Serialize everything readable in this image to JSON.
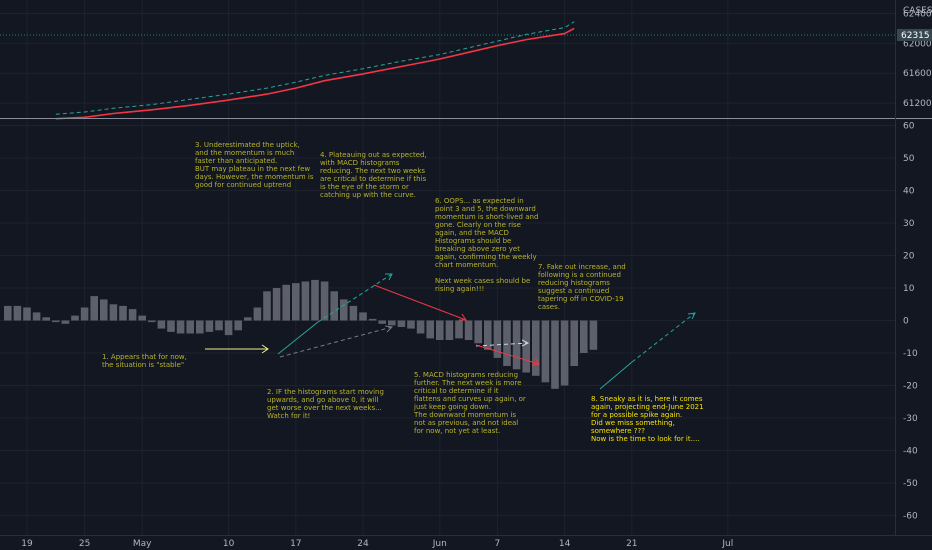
{
  "chart_data": [
    {
      "type": "line",
      "panel": "price",
      "title": "",
      "symbol_label": "CASES",
      "last_value_label": "62315",
      "last_value": 62315,
      "price_ticks": [
        {
          "value": 62400,
          "label": "62400"
        },
        {
          "value": 62000,
          "label": "62000"
        },
        {
          "value": 61600,
          "label": "61600"
        },
        {
          "value": 61200,
          "label": "61200"
        }
      ],
      "ylim": [
        61000,
        62580
      ],
      "colors": {
        "line": "#f23645",
        "dashed_series": "#26a69a",
        "last_value_badge": "#37474f"
      },
      "x": [
        "2021-04-22",
        "2021-04-25",
        "2021-04-28",
        "2021-05-02",
        "2021-05-06",
        "2021-05-10",
        "2021-05-14",
        "2021-05-17",
        "2021-05-20",
        "2021-05-24",
        "2021-05-28",
        "2021-06-01",
        "2021-06-04",
        "2021-06-07",
        "2021-06-10",
        "2021-06-14",
        "2021-06-15"
      ],
      "series": [
        {
          "style": "solid",
          "values": [
            60990,
            61010,
            61060,
            61110,
            61170,
            61240,
            61320,
            61400,
            61500,
            61590,
            61690,
            61790,
            61880,
            61970,
            62050,
            62130,
            62200
          ]
        },
        {
          "style": "dashed",
          "values": [
            61050,
            61080,
            61130,
            61180,
            61250,
            61320,
            61400,
            61480,
            61570,
            61660,
            61760,
            61850,
            61940,
            62030,
            62120,
            62210,
            62290
          ]
        }
      ]
    },
    {
      "type": "bar",
      "panel": "histogram",
      "title": "",
      "ylim": [
        -66,
        62
      ],
      "y_ticks": [
        60,
        50,
        40,
        30,
        20,
        10,
        0,
        -10,
        -20,
        -30,
        -40,
        -50,
        -60
      ],
      "x_ticks": [
        {
          "date": "2021-04-19",
          "label": "19"
        },
        {
          "date": "2021-04-25",
          "label": "25"
        },
        {
          "date": "2021-05-01",
          "label": "May"
        },
        {
          "date": "2021-05-10",
          "label": "10"
        },
        {
          "date": "2021-05-17",
          "label": "17"
        },
        {
          "date": "2021-05-24",
          "label": "24"
        },
        {
          "date": "2021-06-01",
          "label": "Jun"
        },
        {
          "date": "2021-06-07",
          "label": "7"
        },
        {
          "date": "2021-06-14",
          "label": "14"
        },
        {
          "date": "2021-06-21",
          "label": "21"
        },
        {
          "date": "2021-07-01",
          "label": "Jul"
        }
      ],
      "colors": {
        "bar": "#5d606b",
        "grid": "#1e222d"
      },
      "start_date": "2021-04-17",
      "values": [
        4.5,
        4.5,
        4,
        2.5,
        1,
        -0.5,
        -1,
        1.5,
        4,
        7.5,
        6.5,
        5,
        4.5,
        3.5,
        1.5,
        -0.5,
        -2.5,
        -3.5,
        -4,
        -4,
        -4,
        -3.5,
        -3,
        -4.5,
        -3,
        1,
        4,
        9,
        10,
        11,
        11.5,
        12,
        12.5,
        12,
        9,
        6.5,
        4.5,
        2.5,
        0.5,
        -1,
        -1.5,
        -2,
        -2.5,
        -4,
        -5.5,
        -6,
        -6,
        -5.5,
        -6,
        -7,
        -9,
        -11.5,
        -14,
        -15,
        -16,
        -17,
        -19,
        -21,
        -20,
        -14,
        -10,
        -9
      ]
    }
  ],
  "annotations": [
    {
      "id": "note-1",
      "color": "#b7b32b",
      "lines": [
        "1. Appears that for now,",
        "the situation is \"stable\""
      ]
    },
    {
      "id": "note-2",
      "color": "#b7b32b",
      "lines": [
        "2. IF the histograms start moving",
        "upwards, and go above 0, it will",
        "get worse over the next weeks...",
        "Watch for it!"
      ]
    },
    {
      "id": "note-3",
      "color": "#b7b32b",
      "lines": [
        "3. Underestimated the uptick,",
        "and the momentum is much",
        "faster than anticipated.",
        "BUT may plateau in the next few",
        "days. However, the momentum is",
        "good for continued uptrend"
      ]
    },
    {
      "id": "note-4",
      "color": "#b7b32b",
      "lines": [
        "4. Plateauing out as expected,",
        "with MACD histograms",
        "reducing. The next two weeks",
        "are critical to determine if this",
        "is the eye of the storm or",
        "catching up with the curve."
      ]
    },
    {
      "id": "note-5",
      "color": "#b7b32b",
      "lines": [
        "5. MACD histograms reducing",
        "further. The next week is more",
        "critical to determine if it",
        "flattens and curves up again, or",
        "just keep going down.",
        "The downward momentum is",
        "not as previous, and not ideal",
        "for now, not yet at least."
      ]
    },
    {
      "id": "note-6",
      "color": "#b7b32b",
      "lines": [
        "6. OOPS... as expected in",
        "point 3 and 5, the downward",
        "momentum is short-lived and",
        "gone. Clearly on the rise",
        "again, and the MACD",
        "Histograms should be",
        "breaking above zero yet",
        "again, confirming the weekly",
        "chart momentum.",
        "",
        "Next week cases should be",
        "rising again!!!"
      ]
    },
    {
      "id": "note-7",
      "color": "#b7b32b",
      "lines": [
        "7. Fake out increase, and",
        "following is a continued",
        "reducing histograms",
        "suggest a continued",
        "tapering off in COVID-19",
        "cases."
      ]
    },
    {
      "id": "note-8",
      "color": "#f5e400",
      "lines": [
        "8. Sneaky as it is, here it comes",
        "again, projecting end-June 2021",
        "for a possible spike again.",
        "Did we miss something,",
        "somewhere ???",
        "Now is the time to look for it...."
      ]
    }
  ]
}
